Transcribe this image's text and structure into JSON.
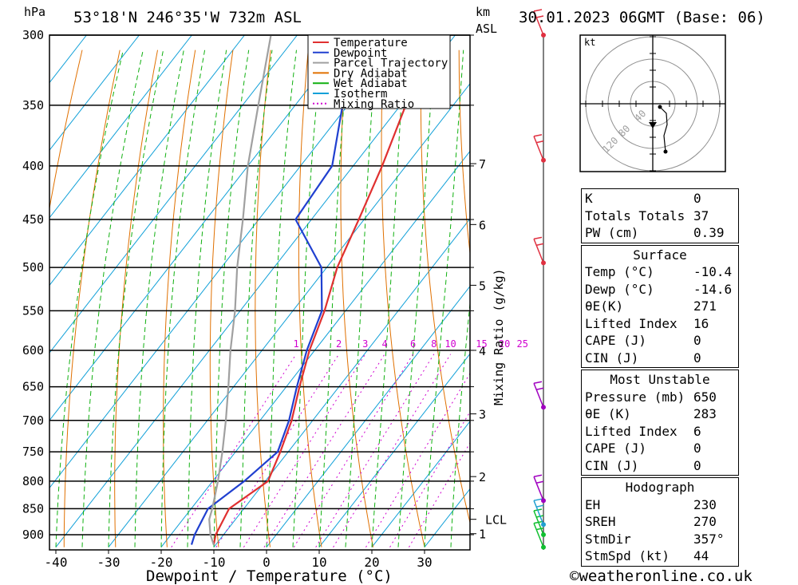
{
  "header": {
    "location": "53°18'N  246°35'W  732m  ASL",
    "datetime": "30.01.2023  06GMT  (Base: 06)",
    "left_unit": "hPa",
    "km_unit": "km",
    "asl_unit": "ASL"
  },
  "chart_data": {
    "type": "line",
    "title": "53°18'N  246°35'W  732m  ASL",
    "xlabel": "Dewpoint / Temperature (°C)",
    "ylabel": "hPa",
    "right_label": "Mixing Ratio (g/kg)",
    "xlim": [
      -42,
      38
    ],
    "ylim": [
      925,
      300
    ],
    "x_ticks": [
      -40,
      -30,
      -20,
      -10,
      0,
      10,
      20,
      30
    ],
    "pressure_levels": [
      300,
      350,
      400,
      450,
      500,
      550,
      600,
      650,
      700,
      750,
      800,
      850,
      900
    ],
    "km_ticks": [
      {
        "label": "7",
        "p": 398
      },
      {
        "label": "6",
        "p": 455
      },
      {
        "label": "5",
        "p": 520
      },
      {
        "label": "4",
        "p": 600
      },
      {
        "label": "3",
        "p": 690
      },
      {
        "label": "2",
        "p": 792
      },
      {
        "label": "LCL",
        "p": 870
      },
      {
        "label": "1",
        "p": 898
      }
    ],
    "mixing_ratio_labels": [
      "1",
      "2",
      "3",
      "4",
      "6",
      "8",
      "10",
      "15",
      "20",
      "25"
    ],
    "legend": [
      "Temperature",
      "Dewpoint",
      "Parcel Trajectory",
      "Dry Adiabat",
      "Wet Adiabat",
      "Isotherm",
      "Mixing Ratio"
    ],
    "colors": {
      "temperature": "#e03030",
      "dewpoint": "#2040d0",
      "parcel": "#a0a0a0",
      "dry_adiabat": "#e07000",
      "wet_adiabat": "#10b010",
      "isotherm": "#10a0d8",
      "mixing_ratio": "#d000d0"
    },
    "series": [
      {
        "name": "Temperature",
        "p": [
          920,
          900,
          850,
          800,
          750,
          700,
          650,
          600,
          550,
          500,
          450,
          400,
          350,
          300
        ],
        "t": [
          -10.4,
          -11.5,
          -12.8,
          -9.5,
          -11.5,
          -14,
          -17.5,
          -21,
          -24,
          -28,
          -31,
          -34.5,
          -39,
          -45
        ]
      },
      {
        "name": "Dewpoint",
        "p": [
          920,
          900,
          850,
          800,
          750,
          700,
          650,
          600,
          550,
          500,
          450,
          400,
          350,
          300
        ],
        "t": [
          -14.6,
          -15.5,
          -16.8,
          -14,
          -12,
          -14.5,
          -18,
          -21.5,
          -24.5,
          -31,
          -43,
          -44,
          -51,
          -59
        ]
      },
      {
        "name": "Parcel Trajectory",
        "p": [
          920,
          900,
          870,
          850,
          800,
          750,
          700,
          650,
          600,
          550,
          500,
          450,
          400,
          350,
          300
        ],
        "t": [
          -10.4,
          -12.5,
          -15,
          -16,
          -19,
          -22.5,
          -26.5,
          -31,
          -36,
          -41,
          -47,
          -53,
          -60,
          -67,
          -75
        ]
      }
    ],
    "wind_barbs": [
      {
        "p": 925,
        "color": "#10c030"
      },
      {
        "p": 900,
        "color": "#10c030"
      },
      {
        "p": 880,
        "color": "#20a0d0"
      },
      {
        "p": 835,
        "color": "#a000c0"
      },
      {
        "p": 680,
        "color": "#a000c0"
      },
      {
        "p": 495,
        "color": "#e03040"
      },
      {
        "p": 395,
        "color": "#e03040"
      },
      {
        "p": 300,
        "color": "#e03040"
      }
    ]
  },
  "hodograph": {
    "unit_label": "kt",
    "ring_labels": [
      "40",
      "80",
      "120"
    ]
  },
  "indices": {
    "top": [
      {
        "label": "K",
        "value": "0"
      },
      {
        "label": "Totals Totals",
        "value": "37"
      },
      {
        "label": "PW (cm)",
        "value": "0.39"
      }
    ],
    "surface": {
      "title": "Surface",
      "rows": [
        {
          "label": "Temp (°C)",
          "value": "-10.4"
        },
        {
          "label": "Dewp (°C)",
          "value": "-14.6"
        },
        {
          "label": "θE(K)",
          "value": "271"
        },
        {
          "label": "Lifted Index",
          "value": "16"
        },
        {
          "label": "CAPE (J)",
          "value": "0"
        },
        {
          "label": "CIN (J)",
          "value": "0"
        }
      ]
    },
    "most_unstable": {
      "title": "Most Unstable",
      "rows": [
        {
          "label": "Pressure (mb)",
          "value": "650"
        },
        {
          "label": "θE (K)",
          "value": "283"
        },
        {
          "label": "Lifted Index",
          "value": "6"
        },
        {
          "label": "CAPE (J)",
          "value": "0"
        },
        {
          "label": "CIN (J)",
          "value": "0"
        }
      ]
    },
    "hodograph_panel": {
      "title": "Hodograph",
      "rows": [
        {
          "label": "EH",
          "value": "230"
        },
        {
          "label": "SREH",
          "value": "270"
        },
        {
          "label": "StmDir",
          "value": "357°"
        },
        {
          "label": "StmSpd (kt)",
          "value": "44"
        }
      ]
    }
  },
  "footer": {
    "copyright": "©weatheronline.co.uk"
  }
}
